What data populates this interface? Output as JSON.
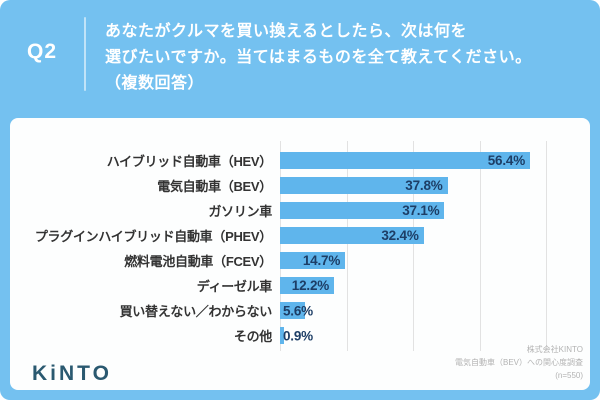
{
  "header": {
    "q_label": "Q2",
    "question": "あなたがクルマを買い換えるとしたら、次は何を\n選びたいですか。当てはまるものを全て教えてください。\n（複数回答）"
  },
  "chart_data": {
    "type": "bar",
    "orientation": "horizontal",
    "title": "あなたがクルマを買い換えるとしたら、次は何を選びたいですか。当てはまるものを全て教えてください。（複数回答）",
    "categories": [
      "ハイブリッド自動車（HEV）",
      "電気自動車（BEV）",
      "ガソリン車",
      "プラグインハイブリッド自動車（PHEV）",
      "燃料電池自動車（FCEV）",
      "ディーゼル車",
      "買い替えない／わからない",
      "その他"
    ],
    "values": [
      56.4,
      37.8,
      37.1,
      32.4,
      14.7,
      12.2,
      5.6,
      0.9
    ],
    "value_labels": [
      "56.4%",
      "37.8%",
      "37.1%",
      "32.4%",
      "14.7%",
      "12.2%",
      "5.6%",
      "0.9%"
    ],
    "unit": "%",
    "xlim": [
      0,
      60
    ],
    "gridline_step": 15,
    "grid": true,
    "bar_color": "#5fb5ec",
    "value_label_color": "#1d3e66"
  },
  "footer": {
    "logo_k": "K",
    "logo_i": "i",
    "logo_nto": "NTO",
    "caption": "株式会社KINTO\n電気自動車（BEV）への関心度調査\n(n=550)"
  },
  "colors": {
    "background": "#74c1f0",
    "panel": "#fdfefe",
    "header_text": "#ffffff",
    "category_text": "#333333",
    "caption_text": "#b3b3b3",
    "logo_text": "#2a5970",
    "gridline": "#e2e2e2"
  }
}
